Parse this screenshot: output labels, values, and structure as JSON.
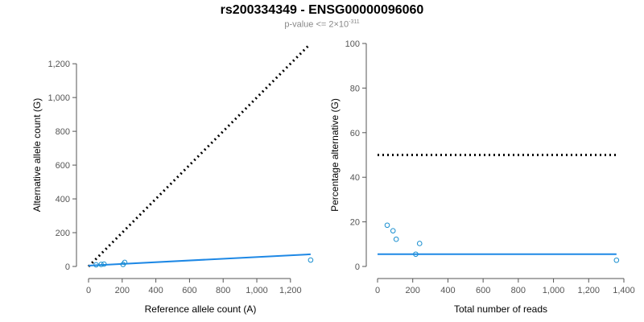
{
  "title": "rs200334349 - ENSG00000096060",
  "subtitle": {
    "prefix": "p-value <= 2",
    "times": "×",
    "base": "10",
    "exponent": "-311"
  },
  "colors": {
    "fit": "#1e88e5",
    "points": "#1a8fd0",
    "reference": "#000000",
    "axis": "#555555"
  },
  "chart_data": [
    {
      "type": "scatter",
      "xlabel": "Reference allele count (A)",
      "ylabel": "Alternative allele count (G)",
      "xlim": [
        0,
        1330
      ],
      "ylim": [
        0,
        1320
      ],
      "xticks": [
        0,
        200,
        400,
        600,
        800,
        1000,
        1200
      ],
      "xtick_labels": [
        "0",
        "200",
        "400",
        "600",
        "800",
        "1,000",
        "1,200"
      ],
      "yticks": [
        0,
        200,
        400,
        600,
        800,
        1000,
        1200
      ],
      "ytick_labels": [
        "0",
        "200",
        "400",
        "600",
        "800",
        "1,000",
        "1,200"
      ],
      "points": [
        {
          "x": 45,
          "y": 10
        },
        {
          "x": 75,
          "y": 12
        },
        {
          "x": 92,
          "y": 14
        },
        {
          "x": 205,
          "y": 12
        },
        {
          "x": 215,
          "y": 24
        },
        {
          "x": 1320,
          "y": 38
        }
      ],
      "fit_line": {
        "x": [
          0,
          1320
        ],
        "y": [
          5,
          72
        ]
      },
      "reference_line": {
        "x": [
          0,
          1310
        ],
        "y": [
          0,
          1310
        ]
      }
    },
    {
      "type": "scatter",
      "xlabel": "Total number of reads",
      "ylabel": "Percentage alternative (G)",
      "xlim": [
        0,
        1400
      ],
      "ylim": [
        0,
        100
      ],
      "xticks": [
        0,
        200,
        400,
        600,
        800,
        1000,
        1200,
        1400
      ],
      "xtick_labels": [
        "0",
        "200",
        "400",
        "600",
        "800",
        "1,000",
        "1,200",
        "1,400"
      ],
      "yticks": [
        0,
        20,
        40,
        60,
        80,
        100
      ],
      "ytick_labels": [
        "0",
        "20",
        "40",
        "60",
        "80",
        "100"
      ],
      "points": [
        {
          "x": 55,
          "y": 18.5
        },
        {
          "x": 88,
          "y": 16
        },
        {
          "x": 106,
          "y": 12.2
        },
        {
          "x": 217,
          "y": 5.5
        },
        {
          "x": 239,
          "y": 10.3
        },
        {
          "x": 1358,
          "y": 2.8
        }
      ],
      "fit_line": {
        "x": [
          0,
          1358
        ],
        "y": [
          5.5,
          5.5
        ]
      },
      "reference_line": {
        "x": [
          0,
          1358
        ],
        "y": [
          50,
          50
        ]
      }
    }
  ]
}
